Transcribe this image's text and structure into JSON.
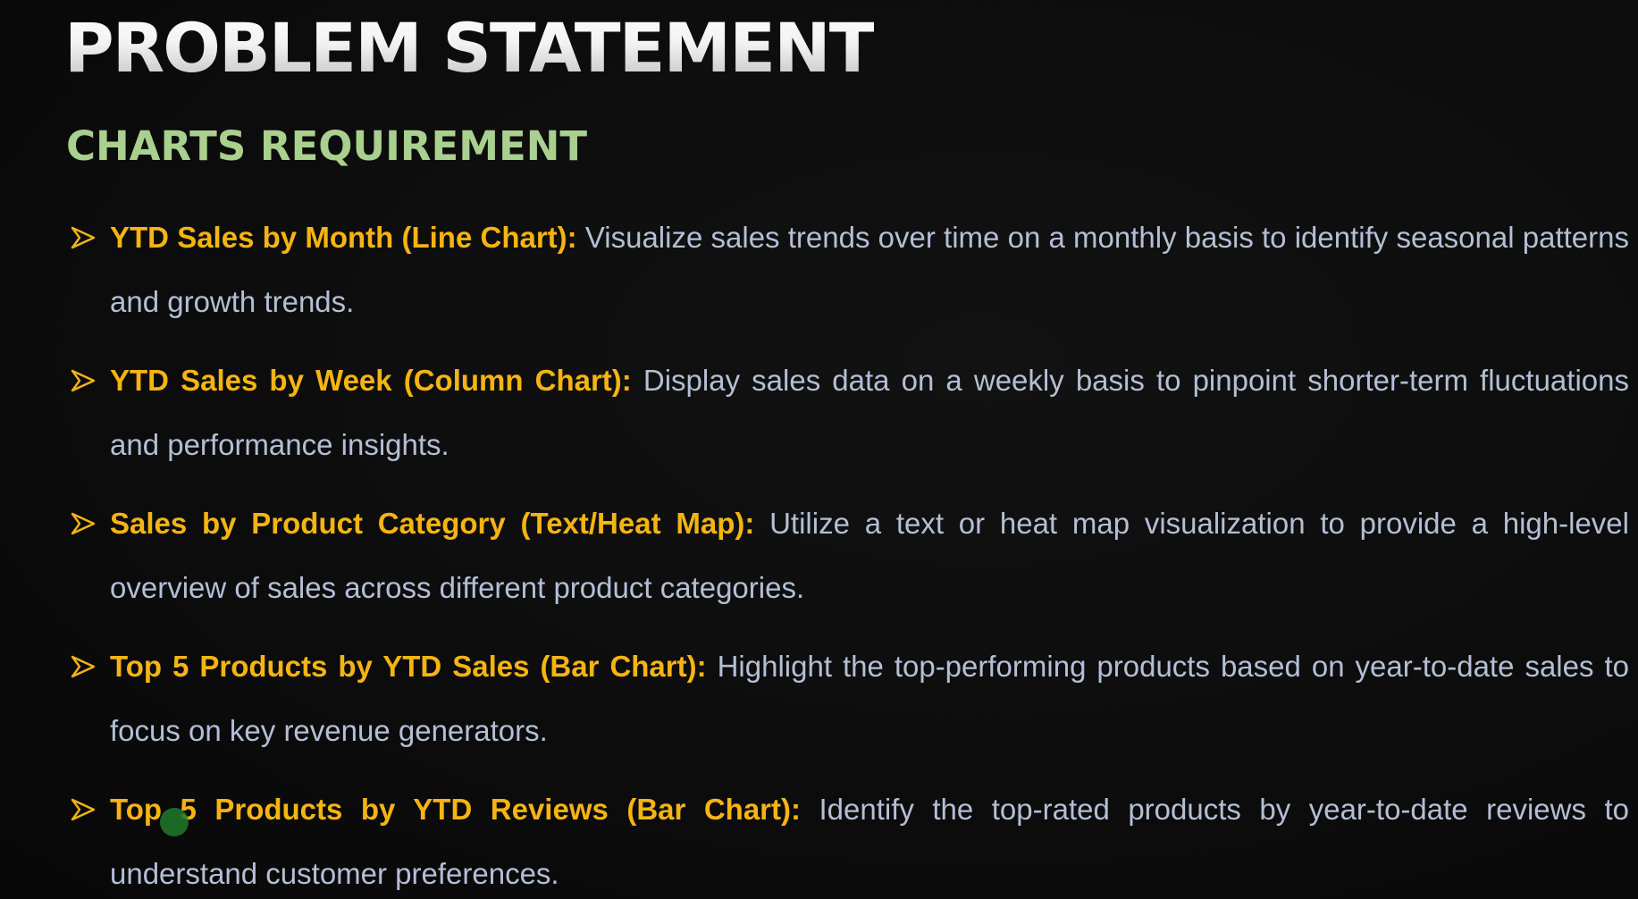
{
  "slide": {
    "title": "PROBLEM STATEMENT",
    "subtitle": "CHARTS REQUIREMENT",
    "items": [
      {
        "heading": "YTD Sales by Month (Line Chart):",
        "description": "Visualize sales trends over time on a monthly basis to identify seasonal patterns and growth trends."
      },
      {
        "heading": "YTD Sales by Week (Column Chart):",
        "description": "Display sales data on a weekly basis to pinpoint shorter-term fluctuations and performance insights."
      },
      {
        "heading": "Sales by Product Category (Text/Heat Map):",
        "description": "Utilize a text or heat map visualization to provide a high-level overview of sales across different product categories."
      },
      {
        "heading": "Top 5 Products by YTD Sales (Bar Chart):",
        "description": "Highlight the top-performing products based on year-to-date sales to focus on key revenue generators."
      },
      {
        "heading": "Top 5 Products by YTD Reviews (Bar Chart):",
        "description": "Identify the top-rated products by year-to-date reviews to understand customer preferences."
      }
    ]
  },
  "icons": {
    "bullet": "arrowhead-bullet-icon",
    "cursor": "pointer-cursor-icon"
  },
  "colors": {
    "background": "#0d0d0d",
    "title": "#f2f2f2",
    "subtitle": "#a9d08e",
    "heading": "#f5b412",
    "body_text": "#b4bfd6",
    "cursor": "#1f7a2a"
  }
}
